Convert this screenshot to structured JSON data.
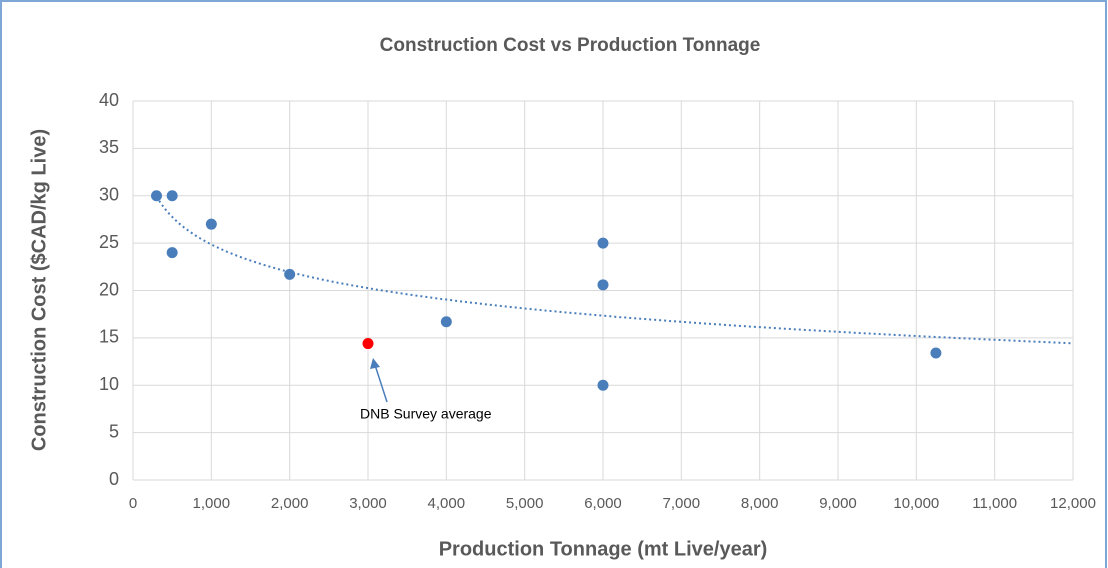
{
  "chart_data": {
    "type": "scatter",
    "title": "Construction Cost vs Production Tonnage",
    "x_label": "Production Tonnage (mt Live/year)",
    "y_label": "Construction Cost ($CAD/kg Live)",
    "series": [
      {
        "color": "#4a7ebb",
        "x": [
          300,
          500,
          500,
          1000,
          2000,
          4000,
          6000,
          6000,
          6000,
          10250
        ],
        "y": [
          30,
          30,
          24,
          27,
          21.7,
          16.7,
          25,
          20.6,
          10,
          13.4
        ]
      },
      {
        "color": "#ff0000",
        "x": [
          3000
        ],
        "y": [
          14.4
        ]
      }
    ],
    "trendline": "logarithmic",
    "trendline_color": "#4a7ebb",
    "annotations": [
      {
        "text": "DNB Survey average"
      }
    ],
    "xlim": [
      0,
      12000
    ],
    "ylim": [
      0,
      40
    ],
    "xticks": [
      0,
      {
        "value": 1000,
        "label": "1,000"
      },
      {
        "value": 2000,
        "label": "2,000"
      },
      {
        "value": 3000,
        "label": "3,000"
      },
      {
        "value": 4000,
        "label": "4,000"
      },
      {
        "value": 5000,
        "label": "5,000"
      },
      {
        "value": 6000,
        "label": "6,000"
      },
      {
        "value": 7000,
        "label": "7,000"
      },
      {
        "value": 8000,
        "label": "8,000"
      },
      {
        "value": 9000,
        "label": "9,000"
      },
      {
        "value": 10000,
        "label": "10,000"
      },
      {
        "value": 11000,
        "label": "11,000"
      },
      {
        "value": 12000,
        "label": "12,000"
      }
    ],
    "yticks": [
      0,
      5,
      10,
      15,
      20,
      25,
      30,
      35,
      40
    ],
    "grid": true
  }
}
